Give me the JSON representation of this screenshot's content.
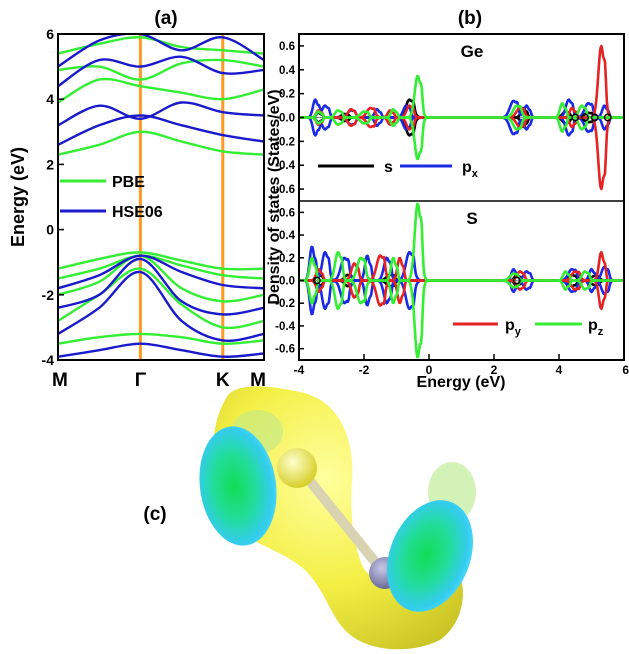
{
  "panels": {
    "a": "(a)",
    "b": "(b)",
    "c": "(c)"
  },
  "colors": {
    "pbe": "#33ee33",
    "hse": "#1a1acc",
    "kline": "#ff9922",
    "s": "#000000",
    "px": "#1a2ae6",
    "py": "#e62222",
    "pz": "#33ee33"
  },
  "chart_data": [
    {
      "type": "line",
      "panel": "(a)",
      "ylabel": "Energy (eV)",
      "ylim": [
        -4,
        6
      ],
      "yticks": [
        -4,
        -2,
        0,
        2,
        4,
        6
      ],
      "kpath": [
        "M",
        "Γ",
        "K",
        "M"
      ],
      "kpos": [
        0,
        1,
        2,
        2.5
      ],
      "series": [
        {
          "name": "PBE",
          "color": "#33ee33",
          "bands": [
            [
              [
                0,
                -1.2
              ],
              [
                0.5,
                -0.9
              ],
              [
                1,
                -0.7
              ],
              [
                1.5,
                -0.95
              ],
              [
                2,
                -1.2
              ],
              [
                2.5,
                -1.2
              ]
            ],
            [
              [
                0,
                -1.5
              ],
              [
                0.5,
                -1.2
              ],
              [
                1,
                -0.8
              ],
              [
                1.5,
                -1.1
              ],
              [
                2,
                -1.4
              ],
              [
                2.5,
                -1.5
              ]
            ],
            [
              [
                0,
                -2.0
              ],
              [
                0.5,
                -1.6
              ],
              [
                1,
                -0.8
              ],
              [
                1.5,
                -1.8
              ],
              [
                2,
                -2.2
              ],
              [
                2.5,
                -2.0
              ]
            ],
            [
              [
                0,
                -2.8
              ],
              [
                0.5,
                -2.0
              ],
              [
                1,
                -1.2
              ],
              [
                1.5,
                -2.3
              ],
              [
                2,
                -3.0
              ],
              [
                2.5,
                -2.8
              ]
            ],
            [
              [
                0,
                -3.5
              ],
              [
                0.5,
                -3.3
              ],
              [
                1,
                -3.2
              ],
              [
                1.5,
                -3.3
              ],
              [
                2,
                -3.5
              ],
              [
                2.5,
                -3.4
              ]
            ],
            [
              [
                0,
                2.3
              ],
              [
                0.5,
                2.6
              ],
              [
                1,
                3.0
              ],
              [
                1.5,
                2.7
              ],
              [
                2,
                2.4
              ],
              [
                2.5,
                2.3
              ]
            ],
            [
              [
                0,
                3.9
              ],
              [
                0.5,
                4.6
              ],
              [
                1,
                4.4
              ],
              [
                1.5,
                4.2
              ],
              [
                2,
                4.0
              ],
              [
                2.5,
                4.3
              ]
            ],
            [
              [
                0,
                4.9
              ],
              [
                0.5,
                5.0
              ],
              [
                1,
                4.6
              ],
              [
                1.5,
                5.1
              ],
              [
                2,
                5.2
              ],
              [
                2.5,
                5.0
              ]
            ],
            [
              [
                0,
                5.4
              ],
              [
                0.5,
                5.7
              ],
              [
                1,
                5.9
              ],
              [
                1.5,
                5.6
              ],
              [
                2,
                5.5
              ],
              [
                2.5,
                5.4
              ]
            ]
          ]
        },
        {
          "name": "HSE06",
          "color": "#1a1acc",
          "bands": [
            [
              [
                0,
                -1.8
              ],
              [
                0.5,
                -1.4
              ],
              [
                1,
                -0.8
              ],
              [
                1.5,
                -1.3
              ],
              [
                2,
                -1.7
              ],
              [
                2.5,
                -1.8
              ]
            ],
            [
              [
                0,
                -2.4
              ],
              [
                0.5,
                -2.0
              ],
              [
                1,
                -0.9
              ],
              [
                1.5,
                -2.2
              ],
              [
                2,
                -2.6
              ],
              [
                2.5,
                -2.4
              ]
            ],
            [
              [
                0,
                -3.2
              ],
              [
                0.5,
                -2.4
              ],
              [
                1,
                -1.3
              ],
              [
                1.5,
                -2.8
              ],
              [
                2,
                -3.4
              ],
              [
                2.5,
                -3.2
              ]
            ],
            [
              [
                0,
                -3.9
              ],
              [
                0.5,
                -3.7
              ],
              [
                1,
                -3.5
              ],
              [
                1.5,
                -3.7
              ],
              [
                2,
                -3.9
              ],
              [
                2.5,
                -3.8
              ]
            ],
            [
              [
                0,
                2.6
              ],
              [
                0.5,
                3.2
              ],
              [
                1,
                3.5
              ],
              [
                1.5,
                3.2
              ],
              [
                2,
                2.9
              ],
              [
                2.5,
                2.7
              ]
            ],
            [
              [
                0,
                3.2
              ],
              [
                0.5,
                3.8
              ],
              [
                1,
                3.4
              ],
              [
                1.5,
                3.9
              ],
              [
                2,
                3.6
              ],
              [
                2.5,
                3.5
              ]
            ],
            [
              [
                0,
                4.4
              ],
              [
                0.5,
                5.2
              ],
              [
                1,
                5.0
              ],
              [
                1.5,
                5.3
              ],
              [
                2,
                4.8
              ],
              [
                2.5,
                4.9
              ]
            ],
            [
              [
                0,
                5.0
              ],
              [
                0.5,
                5.8
              ],
              [
                1,
                6.0
              ],
              [
                1.5,
                5.5
              ],
              [
                2,
                5.9
              ],
              [
                2.5,
                5.2
              ]
            ]
          ]
        }
      ],
      "legend": [
        "PBE",
        "HSE06"
      ]
    },
    {
      "type": "line",
      "panel": "(b)",
      "subplots": [
        {
          "label": "Ge",
          "xlim": [
            -4,
            6
          ],
          "ylim": [
            -0.7,
            0.7
          ],
          "yticks": [
            -0.6,
            -0.4,
            -0.2,
            0.0,
            0.2,
            0.4,
            0.6
          ],
          "series": [
            {
              "name": "s",
              "color": "#000000",
              "peaks": [
                [
                  -3.4,
                  0.04
                ],
                [
                  -2.6,
                  0.03
                ],
                [
                  -0.6,
                  0.15
                ],
                [
                  2.9,
                  0.08
                ],
                [
                  4.2,
                  0.05
                ],
                [
                  4.9,
                  0.04
                ]
              ]
            },
            {
              "name": "p_x",
              "color": "#1a2ae6",
              "peaks": [
                [
                  -3.5,
                  0.15
                ],
                [
                  -3.2,
                  0.1
                ],
                [
                  -2.4,
                  0.06
                ],
                [
                  -1.6,
                  0.07
                ],
                [
                  -0.7,
                  0.1
                ],
                [
                  2.6,
                  0.14
                ],
                [
                  3.0,
                  0.1
                ],
                [
                  4.3,
                  0.15
                ],
                [
                  4.9,
                  0.12
                ],
                [
                  5.4,
                  0.1
                ]
              ]
            },
            {
              "name": "p_y",
              "color": "#e62222",
              "peaks": [
                [
                  -3.4,
                  0.06
                ],
                [
                  -2.4,
                  0.07
                ],
                [
                  -1.8,
                  0.08
                ],
                [
                  -1.2,
                  0.06
                ],
                [
                  -0.6,
                  0.1
                ],
                [
                  2.8,
                  0.08
                ],
                [
                  4.4,
                  0.08
                ],
                [
                  5.3,
                  0.6
                ]
              ]
            },
            {
              "name": "p_z",
              "color": "#33ee33",
              "peaks": [
                [
                  -3.4,
                  0.05
                ],
                [
                  -2.8,
                  0.06
                ],
                [
                  -2.0,
                  0.05
                ],
                [
                  -1.1,
                  0.07
                ],
                [
                  -0.35,
                  0.35
                ],
                [
                  2.7,
                  0.1
                ],
                [
                  4.1,
                  0.12
                ],
                [
                  4.7,
                  0.1
                ]
              ]
            }
          ]
        },
        {
          "label": "S",
          "xlim": [
            -4,
            6
          ],
          "ylim": [
            -0.7,
            0.7
          ],
          "yticks": [
            -0.6,
            -0.4,
            -0.2,
            0.0,
            0.2,
            0.4,
            0.6
          ],
          "series": [
            {
              "name": "s",
              "color": "#000000",
              "peaks": [
                [
                  -3.4,
                  0.06
                ],
                [
                  -2.5,
                  0.05
                ],
                [
                  -1.2,
                  0.05
                ],
                [
                  2.7,
                  0.05
                ],
                [
                  4.4,
                  0.05
                ],
                [
                  5.1,
                  0.04
                ]
              ]
            },
            {
              "name": "p_x",
              "color": "#1a2ae6",
              "peaks": [
                [
                  -3.6,
                  0.3
                ],
                [
                  -3.2,
                  0.25
                ],
                [
                  -2.6,
                  0.2
                ],
                [
                  -1.9,
                  0.22
                ],
                [
                  -1.3,
                  0.2
                ],
                [
                  -0.6,
                  0.25
                ],
                [
                  2.6,
                  0.1
                ],
                [
                  3.0,
                  0.08
                ],
                [
                  4.4,
                  0.1
                ],
                [
                  5.0,
                  0.1
                ],
                [
                  5.4,
                  0.12
                ]
              ]
            },
            {
              "name": "p_y",
              "color": "#e62222",
              "peaks": [
                [
                  -3.4,
                  0.1
                ],
                [
                  -2.3,
                  0.15
                ],
                [
                  -1.5,
                  0.22
                ],
                [
                  -0.9,
                  0.2
                ],
                [
                  2.8,
                  0.08
                ],
                [
                  4.5,
                  0.08
                ],
                [
                  5.3,
                  0.25
                ]
              ]
            },
            {
              "name": "p_z",
              "color": "#33ee33",
              "peaks": [
                [
                  -3.6,
                  0.2
                ],
                [
                  -2.8,
                  0.25
                ],
                [
                  -2.1,
                  0.2
                ],
                [
                  -1.1,
                  0.2
                ],
                [
                  -0.35,
                  0.68
                ],
                [
                  2.6,
                  0.06
                ],
                [
                  4.2,
                  0.08
                ],
                [
                  4.8,
                  0.08
                ]
              ]
            }
          ]
        }
      ],
      "xlabel": "Energy (eV)",
      "ylabel": "Density of states (States/eV)",
      "xticks": [
        -4,
        -2,
        0,
        2,
        4,
        6
      ],
      "legend_top": [
        "s",
        "p"
      ],
      "legend_top_sub": [
        "",
        "x"
      ],
      "legend_bottom": [
        "p",
        "p"
      ],
      "legend_bottom_sub": [
        "y",
        "z"
      ]
    }
  ]
}
